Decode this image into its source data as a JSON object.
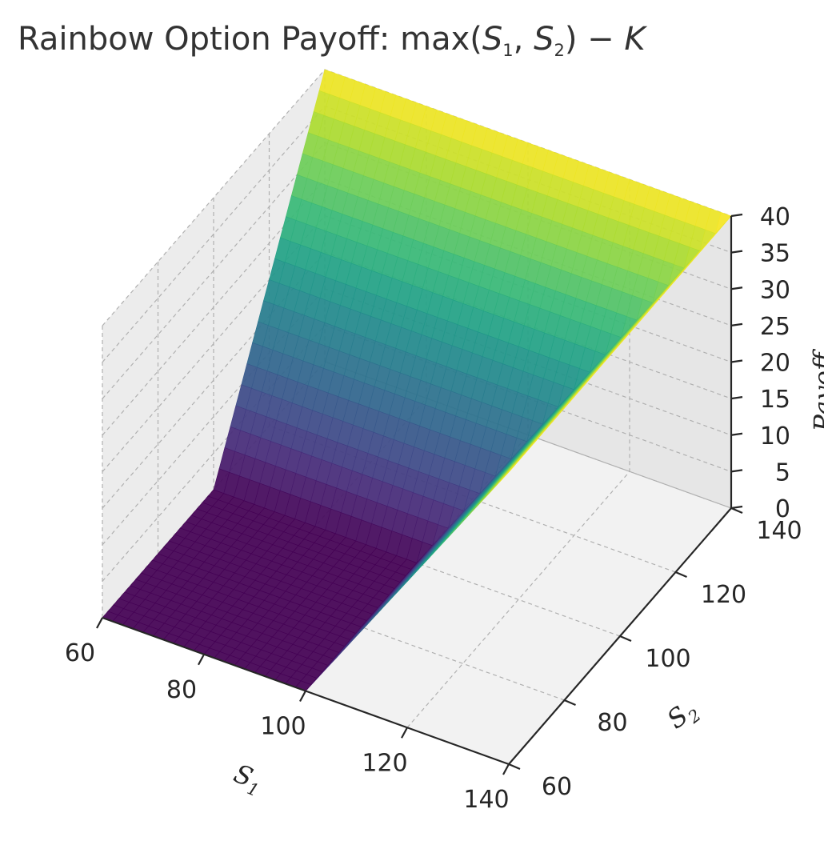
{
  "chart_data": {
    "type": "surface",
    "title": {
      "prefix": "Rainbow Option Payoff: max(",
      "s": "S",
      "sub1": "1",
      "comma": ", ",
      "sub2": "2",
      "suffix": ") − ",
      "k": "K"
    },
    "xlabel": {
      "main": "S",
      "sub": "1"
    },
    "ylabel": {
      "main": "S",
      "sub": "2"
    },
    "zlabel": "Payoff",
    "strike": 100,
    "x_range": [
      60,
      140
    ],
    "y_range": [
      60,
      140
    ],
    "z_range": [
      0,
      40
    ],
    "x_ticks": [
      "60",
      "80",
      "100",
      "120",
      "140"
    ],
    "y_ticks": [
      "60",
      "80",
      "100",
      "120",
      "140"
    ],
    "z_ticks": [
      "0",
      "5",
      "10",
      "15",
      "20",
      "25",
      "30",
      "35",
      "40"
    ],
    "colormap": "viridis",
    "grid": true,
    "payoff_formula": "max(S1, S2) - K, floored at 0"
  },
  "colors": {
    "pane_x": "#ececec",
    "pane_y": "#e6e6e6",
    "pane_floor": "#f2f2f2",
    "grid": "#b0b0b0",
    "axis": "#262626"
  }
}
